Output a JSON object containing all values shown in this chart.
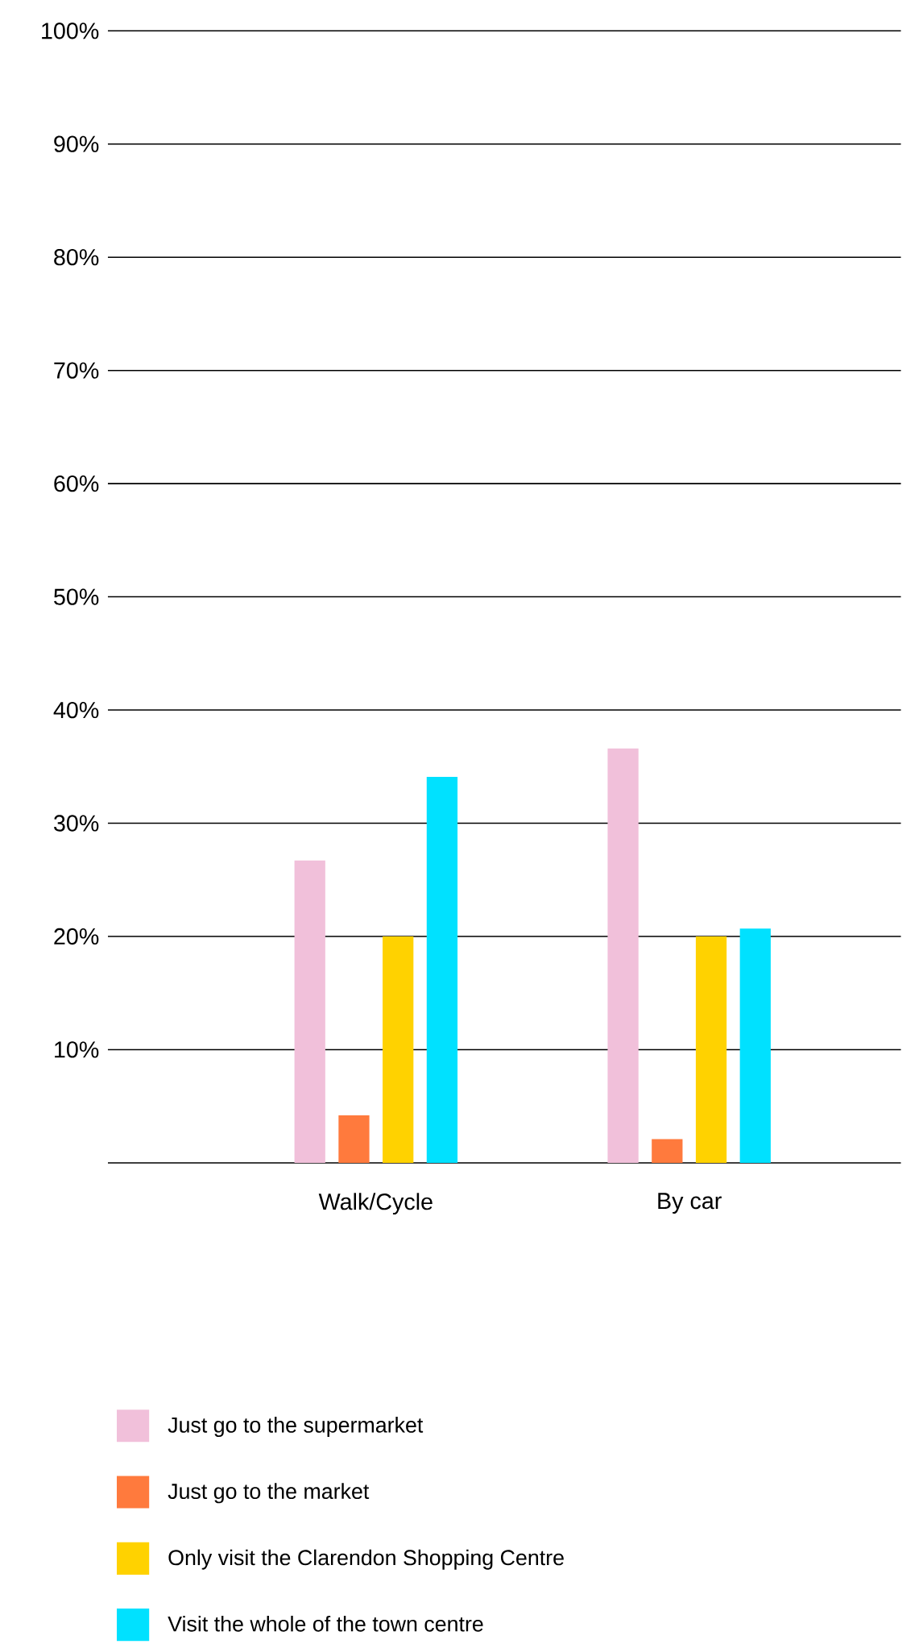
{
  "chart_data": {
    "type": "bar",
    "categories": [
      "Walk/Cycle",
      "By car"
    ],
    "series": [
      {
        "name": "Just go to the supermarket",
        "color": "#f1c0da",
        "values": [
          26.7,
          36.6
        ]
      },
      {
        "name": "Just go to the market",
        "color": "#ff7a3d",
        "values": [
          4.2,
          2.1
        ]
      },
      {
        "name": "Only visit the Clarendon Shopping Centre",
        "color": "#ffd200",
        "values": [
          20,
          20
        ]
      },
      {
        "name": "Visit the whole of the town centre",
        "color": "#00e1ff",
        "values": [
          34.1,
          20.7
        ]
      }
    ],
    "ylim": [
      0,
      100
    ],
    "yticks": [
      {
        "value": 0,
        "label": null
      },
      {
        "value": 10,
        "label": "10%"
      },
      {
        "value": 20,
        "label": "20%"
      },
      {
        "value": 30,
        "label": "30%"
      },
      {
        "value": 40,
        "label": "40%"
      },
      {
        "value": 50,
        "label": "50%"
      },
      {
        "value": 60,
        "label": "60%"
      },
      {
        "value": 70,
        "label": "70%"
      },
      {
        "value": 80,
        "label": "80%"
      },
      {
        "value": 90,
        "label": "90%"
      },
      {
        "value": 100,
        "label": "100%"
      }
    ],
    "grid": "y",
    "legend": "bottom"
  }
}
